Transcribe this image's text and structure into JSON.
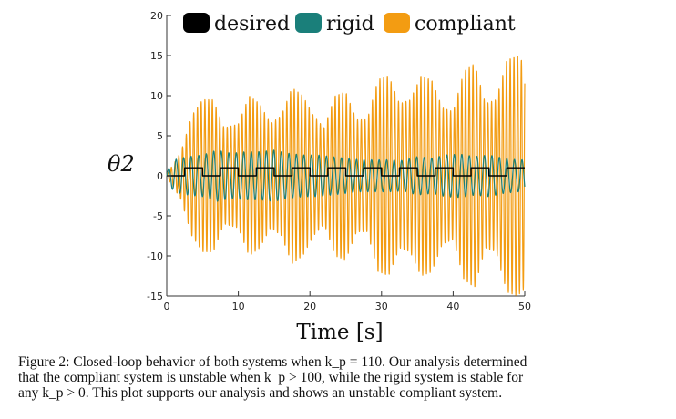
{
  "chart_data": {
    "type": "line",
    "xlabel": "Time [s]",
    "ylabel": "θ2",
    "xlim": [
      0,
      50
    ],
    "ylim": [
      -15,
      20
    ],
    "xticks": [
      0,
      10,
      20,
      30,
      40,
      50
    ],
    "yticks": [
      -15,
      -10,
      -5,
      0,
      5,
      10,
      15,
      20
    ],
    "grid": false,
    "legend_position": "top",
    "series": [
      {
        "name": "desired",
        "color": "#000000",
        "style": "square wave",
        "x": [
          0,
          2.5,
          2.5,
          5,
          5,
          7.5,
          7.5,
          10,
          10,
          12.5,
          12.5,
          15,
          15,
          17.5,
          17.5,
          20,
          20,
          22.5,
          22.5,
          25,
          25,
          27.5,
          27.5,
          30,
          30,
          32.5,
          32.5,
          35,
          35,
          37.5,
          37.5,
          40,
          40,
          42.5,
          42.5,
          45,
          45,
          47.5,
          47.5,
          50
        ],
        "y": [
          0,
          0,
          1,
          1,
          0,
          0,
          1,
          1,
          0,
          0,
          1,
          1,
          0,
          0,
          1,
          1,
          0,
          0,
          1,
          1,
          0,
          0,
          1,
          1,
          0,
          0,
          1,
          1,
          0,
          0,
          1,
          1,
          0,
          0,
          1,
          1,
          0,
          0,
          1,
          1
        ]
      },
      {
        "name": "rigid",
        "color": "#1a7f7a",
        "style": "oscillation",
        "period": 1.05,
        "envelope_t": [
          0,
          1,
          3,
          5,
          7,
          9,
          11,
          13,
          15,
          17,
          19,
          21,
          23,
          25,
          27,
          29,
          31,
          33,
          35,
          37,
          39,
          41,
          43,
          45,
          47,
          49,
          50
        ],
        "envelope_amp": [
          0.5,
          2.0,
          2.4,
          2.6,
          3.2,
          2.8,
          3.0,
          3.0,
          3.2,
          2.8,
          2.6,
          2.6,
          2.4,
          2.2,
          2.0,
          2.0,
          2.0,
          1.9,
          2.4,
          2.2,
          2.6,
          2.7,
          2.4,
          2.6,
          2.2,
          2.0,
          2.0
        ]
      },
      {
        "name": "compliant",
        "color": "#f39c12",
        "style": "oscillation",
        "period": 0.52,
        "envelope_t": [
          0,
          1,
          2,
          3.5,
          5,
          6.5,
          8,
          10,
          11.5,
          13,
          14.5,
          16,
          17.5,
          19,
          20.5,
          22,
          23.5,
          25,
          26.5,
          28,
          29.5,
          31,
          32.5,
          34,
          35.5,
          37,
          38.5,
          40,
          41.5,
          43,
          44.5,
          46,
          47.5,
          49,
          50
        ],
        "envelope_amp": [
          0.3,
          1.5,
          3.0,
          7.5,
          9.5,
          9.5,
          6.0,
          6.5,
          10.0,
          9.0,
          6.5,
          7.5,
          11.0,
          10.0,
          7.5,
          6.0,
          10.0,
          10.5,
          7.0,
          7.0,
          12.0,
          12.5,
          9.0,
          9.5,
          12.5,
          12.0,
          8.5,
          8.0,
          13.0,
          14.0,
          9.0,
          9.5,
          14.5,
          15.0,
          14.0
        ]
      }
    ]
  },
  "caption": {
    "line1": "Figure 2: Closed-loop behavior of both systems when k_p = 110. Our analysis determined",
    "line2": "that the compliant system is unstable when k_p > 100, while the rigid system is stable for",
    "line3": "any k_p > 0. This plot supports our analysis and shows an unstable compliant system."
  }
}
